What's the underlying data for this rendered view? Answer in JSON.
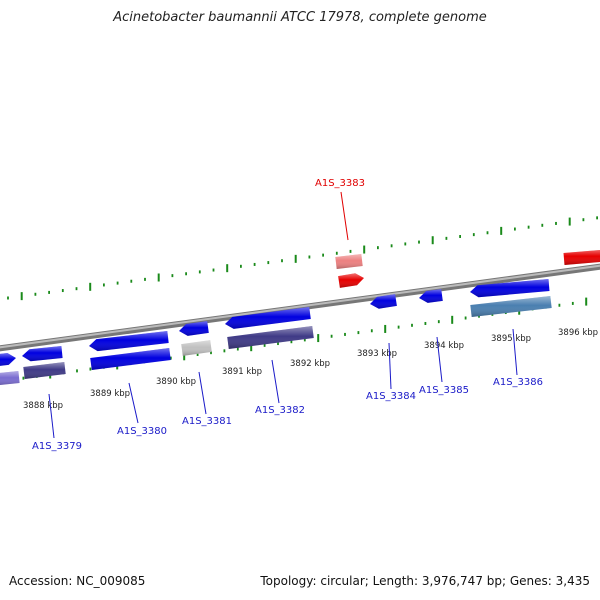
{
  "title": "Acinetobacter baumannii ATCC 17978, complete genome",
  "footer": {
    "accession": "Accession: NC_009085",
    "summary": "Topology: circular; Length: 3,976,747 bp; Genes: 3,435"
  },
  "colors": {
    "backbone": "#888888",
    "tick": "#1a8a1a",
    "gene_forward": "#0000e0",
    "gene_highlight": "#e60000",
    "feature_highlight": "#ec8080",
    "feature_dark": "#3f3a86",
    "feature_steel": "#4a7fb0",
    "feature_grey": "#c0c0c0",
    "feature_lavender": "#7a6cd0",
    "label_default": "#1a1ac8",
    "label_highlight": "#e00000"
  },
  "scale_labels": [
    "3888 kbp",
    "3889 kbp",
    "3890 kbp",
    "3891 kbp",
    "3892 kbp",
    "3893 kbp",
    "3894 kbp",
    "3895 kbp",
    "3896 kbp"
  ],
  "gene_labels": [
    {
      "id": "A1S_3379",
      "label": "A1S_3379",
      "highlight": false
    },
    {
      "id": "A1S_3380",
      "label": "A1S_3380",
      "highlight": false
    },
    {
      "id": "A1S_3381",
      "label": "A1S_3381",
      "highlight": false
    },
    {
      "id": "A1S_3382",
      "label": "A1S_3382",
      "highlight": false
    },
    {
      "id": "A1S_3383",
      "label": "A1S_3383",
      "highlight": true
    },
    {
      "id": "A1S_3384",
      "label": "A1S_3384",
      "highlight": false
    },
    {
      "id": "A1S_3385",
      "label": "A1S_3385",
      "highlight": false
    },
    {
      "id": "A1S_3386",
      "label": "A1S_3386",
      "highlight": false
    }
  ]
}
